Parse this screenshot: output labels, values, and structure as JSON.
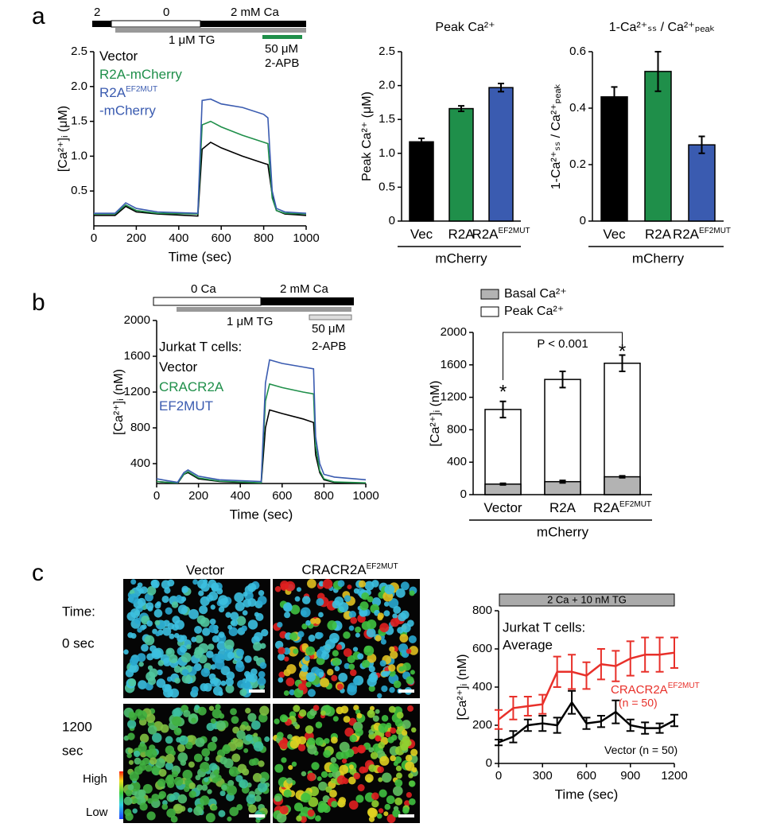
{
  "panel_labels": [
    "a",
    "b",
    "c"
  ],
  "protocols": {
    "a": [
      "2",
      "0",
      "2 mM Ca",
      "1 μM TG",
      "50 μM",
      "2-APB"
    ],
    "b": [
      "0 Ca",
      "2 mM Ca",
      "1 μM TG",
      "50 μM",
      "2-APB"
    ],
    "c": [
      "2 Ca + 10 nM TG"
    ]
  },
  "images": {
    "columns": [
      {
        "title": "Vector"
      },
      {
        "title": "CRACR2A",
        "sup": "EF2MUT"
      }
    ],
    "row_labels": [
      "Time:",
      "0 sec",
      "1200",
      "sec"
    ],
    "colorbar": [
      "High",
      "Low"
    ]
  },
  "chart_data": [
    {
      "type": "line",
      "x": [
        0,
        100,
        150,
        200,
        300,
        490,
        510,
        550,
        600,
        700,
        800,
        820,
        840,
        860,
        900,
        1000
      ],
      "xlim": [
        0,
        1000
      ],
      "xticks": [
        0,
        200,
        400,
        600,
        800,
        1000
      ],
      "ylim": [
        0,
        2.5
      ],
      "yticks": [
        0.5,
        {
          "value": 1,
          "label": "1.0"
        },
        1.5,
        {
          "value": 2,
          "label": "2.0"
        },
        2.5
      ],
      "xlabel": "Time (sec)",
      "ylabel": "[Ca²⁺]ᵢ (μM)",
      "series": [
        {
          "name": "Vector",
          "color": "#000000",
          "values": [
            0.15,
            0.15,
            0.28,
            0.2,
            0.17,
            0.14,
            1.1,
            1.2,
            1.12,
            1.0,
            0.9,
            0.88,
            0.45,
            0.22,
            0.17,
            0.15
          ]
        },
        {
          "name": "R2A-mCherry",
          "color": "#1f8f4a",
          "values": [
            0.17,
            0.17,
            0.3,
            0.22,
            0.18,
            0.17,
            1.45,
            1.5,
            1.42,
            1.3,
            1.2,
            1.18,
            0.4,
            0.22,
            0.18,
            0.17
          ]
        },
        {
          "name": "R2A",
          "name_sup": "EF2MUT",
          "name_line2": "-mCherry",
          "color": "#3a5bb0",
          "values": [
            0.18,
            0.18,
            0.33,
            0.25,
            0.2,
            0.18,
            1.8,
            1.82,
            1.75,
            1.7,
            1.6,
            1.55,
            0.5,
            0.25,
            0.2,
            0.18
          ]
        }
      ]
    },
    {
      "type": "bar",
      "title": "Peak Ca²⁺",
      "ylabel": "Peak Ca²⁺ (μM)",
      "categories": [
        "Vec",
        "R2A",
        "R2A"
      ],
      "category_sup": [
        null,
        null,
        "EF2MUT"
      ],
      "group_label": "mCherry",
      "values": [
        1.17,
        1.66,
        1.97
      ],
      "errors": [
        0.05,
        0.04,
        0.06
      ],
      "colors": [
        "#000000",
        "#1f8f4a",
        "#3a5bb0"
      ],
      "ylim": [
        0,
        2.5
      ],
      "yticks": [
        0,
        0.5,
        {
          "value": 1,
          "label": "1.0"
        },
        1.5,
        {
          "value": 2,
          "label": "2.0"
        },
        2.5
      ]
    },
    {
      "type": "bar",
      "title": "1-Ca²⁺ₛₛ / Ca²⁺ₚₑₐₖ",
      "ylabel": "1-Ca²⁺ₛₛ / Ca²⁺ₚₑₐₖ",
      "categories": [
        "Vec",
        "R2A",
        "R2A"
      ],
      "category_sup": [
        null,
        null,
        "EF2MUT"
      ],
      "group_label": "mCherry",
      "values": [
        0.44,
        0.53,
        0.27
      ],
      "errors": [
        0.035,
        0.07,
        0.03
      ],
      "colors": [
        "#000000",
        "#1f8f4a",
        "#3a5bb0"
      ],
      "ylim": [
        0,
        0.6
      ],
      "yticks": [
        0,
        0.2,
        0.4,
        0.6
      ]
    },
    {
      "type": "line",
      "x": [
        0,
        50,
        100,
        130,
        150,
        200,
        300,
        500,
        520,
        540,
        600,
        700,
        750,
        760,
        780,
        800,
        850,
        1000
      ],
      "xlim": [
        0,
        1000
      ],
      "xticks": [
        0,
        200,
        400,
        600,
        800,
        1000
      ],
      "ylim": [
        178,
        2000
      ],
      "yticks": [
        400,
        800,
        1200,
        1600,
        2000
      ],
      "xlabel": "Time (sec)",
      "ylabel": "[Ca²⁺]ᵢ (nM)",
      "legend_title": "Jurkat T cells:",
      "series": [
        {
          "name": "Vector",
          "color": "#000000",
          "values": [
            200,
            190,
            180,
            280,
            300,
            230,
            200,
            180,
            800,
            1000,
            960,
            900,
            860,
            500,
            300,
            220,
            190,
            180
          ]
        },
        {
          "name": "CRACR2A",
          "color": "#1f8f4a",
          "values": [
            200,
            190,
            185,
            280,
            310,
            240,
            205,
            185,
            1100,
            1290,
            1250,
            1200,
            1180,
            600,
            320,
            230,
            195,
            185
          ]
        },
        {
          "name": "EF2MUT",
          "color": "#3a5bb0",
          "values": [
            230,
            210,
            190,
            300,
            330,
            260,
            220,
            200,
            1300,
            1560,
            1520,
            1480,
            1460,
            700,
            400,
            280,
            250,
            220
          ]
        }
      ]
    },
    {
      "type": "bar",
      "ylabel": "[Ca²⁺]ᵢ (nM)",
      "categories": [
        "Vector",
        "R2A",
        "R2A"
      ],
      "category_sup": [
        null,
        null,
        "EF2MUT"
      ],
      "group_label": "mCherry",
      "ylim": [
        0,
        2000
      ],
      "yticks": [
        0,
        400,
        800,
        1200,
        1600,
        2000
      ],
      "annotations": [
        "P < 0.001",
        "*",
        "*"
      ],
      "series": [
        {
          "name": "Basal Ca²⁺",
          "color": "#b3b3b3",
          "values": [
            130,
            160,
            220
          ],
          "errors": [
            10,
            15,
            12
          ]
        },
        {
          "name": "Peak Ca²⁺",
          "color": "#ffffff",
          "values": [
            1050,
            1420,
            1620
          ],
          "errors": [
            100,
            100,
            100
          ]
        }
      ]
    },
    {
      "type": "line",
      "x": [
        0,
        100,
        200,
        300,
        400,
        500,
        600,
        700,
        800,
        900,
        1000,
        1100,
        1200
      ],
      "xlim": [
        0,
        1200
      ],
      "xticks": [
        0,
        300,
        600,
        900,
        1200
      ],
      "ylim": [
        0,
        800
      ],
      "yticks": [
        0,
        200,
        400,
        600,
        800
      ],
      "xlabel": "Time (sec)",
      "ylabel": "[Ca²⁺]ᵢ (nM)",
      "legend_title": "Jurkat T cells:",
      "legend_subtitle": "Average",
      "series": [
        {
          "name": "CRACR2A",
          "name_sup": "EF2MUT",
          "name_line2": "(n = 50)",
          "color": "#e8302a",
          "values": [
            230,
            290,
            300,
            310,
            480,
            480,
            460,
            520,
            510,
            550,
            570,
            570,
            580
          ],
          "errors": [
            50,
            60,
            50,
            50,
            80,
            90,
            70,
            80,
            80,
            90,
            90,
            90,
            80
          ]
        },
        {
          "name": "Vector (n = 50)",
          "color": "#000000",
          "values": [
            110,
            140,
            200,
            210,
            200,
            320,
            210,
            220,
            270,
            200,
            185,
            185,
            225
          ],
          "errors": [
            15,
            30,
            30,
            40,
            40,
            60,
            30,
            30,
            60,
            30,
            30,
            25,
            30
          ]
        }
      ]
    }
  ]
}
